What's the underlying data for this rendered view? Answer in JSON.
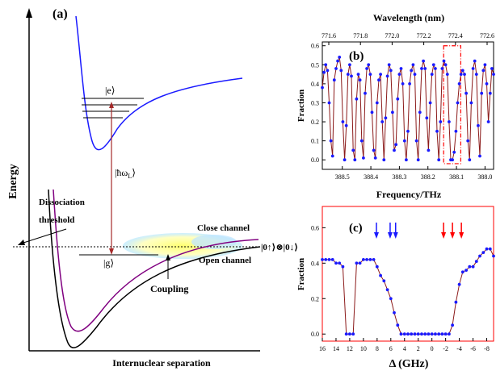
{
  "panel_a": {
    "label": "(a)",
    "ylabel": "Energy",
    "xlabel": "Internuclear separation",
    "excited_state_label": "|e⟩",
    "ground_state_label": "|g⟩",
    "photon_label": "|ħω",
    "photon_label_sub": "L",
    "photon_label_end": "⟩",
    "dissociation_line1": "Dissociation",
    "dissociation_line2": "threshold",
    "closed_channel": "Close channel",
    "open_channel": "Open channel",
    "coupling": "Coupling",
    "threshold_state": "|0↑⟩⊗|0↓⟩",
    "colors": {
      "excited_curve": "#1a1aff",
      "closed_curve": "#800080",
      "open_curve": "#000000",
      "arrow": "#a52a2a",
      "coupling_fill": "#ffff66",
      "coupling_edge": "#66ccff"
    }
  },
  "chart_data": [
    {
      "id": "b",
      "type": "line",
      "label": "(b)",
      "title": "",
      "top_axis_label": "Wavelength (nm)",
      "xlabel": "Frequency/THz",
      "ylabel": "Fraction",
      "xlim": [
        388.57,
        387.97
      ],
      "ylim": [
        -0.05,
        0.62
      ],
      "x_ticks": [
        "388.5",
        "388.4",
        "388.3",
        "388.2",
        "388.1",
        "388.0"
      ],
      "y_ticks": [
        "0.0",
        "0.1",
        "0.2",
        "0.3",
        "0.4",
        "0.5",
        "0.6"
      ],
      "top_ticks": [
        "771.6",
        "771.8",
        "772.0",
        "772.2",
        "772.4",
        "772.6"
      ],
      "highlight": {
        "x": [
          388.145,
          388.085
        ],
        "y": [
          -0.02,
          0.6
        ],
        "color": "#ff0000"
      },
      "series": [
        {
          "marker_color": "#1a1aff",
          "line_color": "#8b1a1a",
          "x": [
            388.57,
            388.564,
            388.558,
            388.552,
            388.546,
            388.54,
            388.534,
            388.528,
            388.522,
            388.516,
            388.51,
            388.504,
            388.498,
            388.492,
            388.486,
            388.48,
            388.474,
            388.468,
            388.462,
            388.456,
            388.45,
            388.444,
            388.438,
            388.432,
            388.426,
            388.42,
            388.414,
            388.408,
            388.402,
            388.396,
            388.39,
            388.384,
            388.378,
            388.372,
            388.366,
            388.36,
            388.354,
            388.348,
            388.342,
            388.336,
            388.33,
            388.324,
            388.318,
            388.312,
            388.306,
            388.3,
            388.294,
            388.288,
            388.282,
            388.276,
            388.27,
            388.264,
            388.258,
            388.252,
            388.246,
            388.24,
            388.234,
            388.228,
            388.222,
            388.216,
            388.21,
            388.204,
            388.198,
            388.192,
            388.186,
            388.18,
            388.174,
            388.168,
            388.162,
            388.156,
            388.15,
            388.144,
            388.138,
            388.132,
            388.126,
            388.12,
            388.114,
            388.108,
            388.102,
            388.096,
            388.09,
            388.084,
            388.078,
            388.072,
            388.066,
            388.06,
            388.054,
            388.048,
            388.042,
            388.036,
            388.03,
            388.024,
            388.018,
            388.012,
            388.006,
            388.0,
            387.994,
            387.988,
            387.982,
            387.976,
            387.97
          ],
          "y": [
            0.38,
            0.46,
            0.5,
            0.47,
            0.3,
            0.1,
            0.02,
            0.42,
            0.48,
            0.52,
            0.54,
            0.47,
            0.2,
            0.0,
            0.18,
            0.45,
            0.5,
            0.44,
            0.05,
            0.0,
            0.32,
            0.45,
            0.42,
            0.1,
            0.01,
            0.35,
            0.48,
            0.5,
            0.45,
            0.25,
            0.05,
            0.01,
            0.3,
            0.42,
            0.45,
            0.2,
            0.0,
            0.22,
            0.44,
            0.5,
            0.47,
            0.25,
            0.05,
            0.08,
            0.32,
            0.45,
            0.48,
            0.4,
            0.1,
            0.0,
            0.15,
            0.4,
            0.47,
            0.5,
            0.45,
            0.1,
            0.0,
            0.25,
            0.48,
            0.52,
            0.48,
            0.22,
            0.05,
            0.3,
            0.45,
            0.5,
            0.48,
            0.15,
            0.0,
            0.2,
            0.48,
            0.52,
            0.5,
            0.45,
            0.2,
            0.0,
            0.0,
            0.04,
            0.15,
            0.3,
            0.4,
            0.45,
            0.47,
            0.45,
            0.35,
            0.1,
            0.0,
            0.3,
            0.48,
            0.52,
            0.45,
            0.18,
            0.02,
            0.35,
            0.47,
            0.5,
            0.4,
            0.2,
            0.35,
            0.48,
            0.45
          ]
        }
      ]
    },
    {
      "id": "c",
      "type": "line",
      "label": "(c)",
      "title": "",
      "xlabel": "Δ (GHz)",
      "ylabel": "Fraction",
      "xlim": [
        16,
        -9
      ],
      "ylim": [
        -0.04,
        0.72
      ],
      "x_ticks": [
        "16",
        "14",
        "12",
        "10",
        "8",
        "6",
        "4",
        "2",
        "0",
        "-2",
        "-4",
        "-6",
        "-8"
      ],
      "y_ticks": [
        "0.0",
        "0.2",
        "0.4",
        "0.6"
      ],
      "series": [
        {
          "marker_color": "#1a1aff",
          "line_color": "#8b1a1a",
          "x": [
            16,
            15.5,
            15,
            14.5,
            14,
            13.5,
            13,
            12.5,
            12,
            11.5,
            11,
            10.5,
            10,
            9.5,
            9,
            8.5,
            8,
            7.5,
            7,
            6.5,
            6,
            5.5,
            5,
            4.5,
            4,
            3.5,
            3,
            2.5,
            2,
            1.5,
            1,
            0.5,
            0,
            -0.5,
            -1,
            -1.5,
            -2,
            -2.5,
            -3,
            -3.5,
            -4,
            -4.5,
            -5,
            -5.5,
            -6,
            -6.5,
            -7,
            -7.5,
            -8,
            -8.5,
            -9
          ],
          "y": [
            0.42,
            0.42,
            0.42,
            0.42,
            0.4,
            0.4,
            0.38,
            0.0,
            0.0,
            0.0,
            0.4,
            0.4,
            0.42,
            0.42,
            0.42,
            0.42,
            0.38,
            0.33,
            0.3,
            0.25,
            0.2,
            0.12,
            0.05,
            0.0,
            0.0,
            0.0,
            0.0,
            0.0,
            0.0,
            0.0,
            0.0,
            0.0,
            0.0,
            0.0,
            0.0,
            0.0,
            0.0,
            0.0,
            0.05,
            0.18,
            0.28,
            0.35,
            0.36,
            0.38,
            0.38,
            0.41,
            0.44,
            0.46,
            0.48,
            0.48,
            0.44
          ]
        }
      ],
      "arrows": [
        {
          "x": 8.1,
          "color": "#1a1aff"
        },
        {
          "x": 6.1,
          "color": "#1a1aff"
        },
        {
          "x": 5.3,
          "color": "#1a1aff"
        },
        {
          "x": -1.7,
          "color": "#ff0000"
        },
        {
          "x": -3.0,
          "color": "#ff0000"
        },
        {
          "x": -4.3,
          "color": "#ff0000"
        }
      ],
      "frame_color": "#ff0000"
    }
  ]
}
